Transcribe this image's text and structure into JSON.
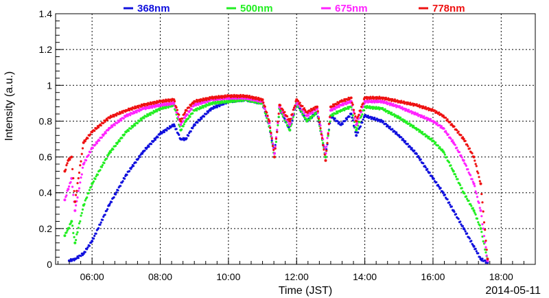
{
  "chart_data": {
    "type": "scatter",
    "xlabel": "Time (JST)",
    "ylabel": "Intensity (a.u.)",
    "date_label": "2014-05-11",
    "x_unit": "hours (JST)",
    "xlim": [
      4.93,
      19.0
    ],
    "ylim": [
      0,
      1.4
    ],
    "grid": true,
    "legend_position": "top",
    "x_ticks": [
      {
        "value": 6,
        "label": "06:00"
      },
      {
        "value": 8,
        "label": "08:00"
      },
      {
        "value": 10,
        "label": "10:00"
      },
      {
        "value": 12,
        "label": "12:00"
      },
      {
        "value": 14,
        "label": "14:00"
      },
      {
        "value": 16,
        "label": "16:00"
      },
      {
        "value": 18,
        "label": "18:00"
      }
    ],
    "y_ticks": [
      {
        "value": 0,
        "label": "0"
      },
      {
        "value": 0.2,
        "label": "0.2"
      },
      {
        "value": 0.4,
        "label": "0.4"
      },
      {
        "value": 0.6,
        "label": "0.6"
      },
      {
        "value": 0.8,
        "label": "0.8"
      },
      {
        "value": 1,
        "label": "1"
      },
      {
        "value": 1.2,
        "label": "1.2"
      },
      {
        "value": 1.4,
        "label": "1.4"
      }
    ],
    "series": [
      {
        "name": "368nm",
        "color": "#1010dd",
        "x": [
          5.33,
          5.5,
          5.75,
          6.0,
          6.5,
          7.0,
          7.5,
          8.0,
          8.4,
          8.6,
          8.75,
          9.0,
          9.5,
          10.0,
          10.5,
          11.0,
          11.2,
          11.35,
          11.5,
          11.8,
          12.0,
          12.3,
          12.6,
          12.85,
          13.0,
          13.3,
          13.6,
          13.75,
          14.0,
          14.5,
          15.0,
          15.5,
          16.0,
          16.3,
          16.6,
          16.9,
          17.2,
          17.4,
          17.6
        ],
        "y": [
          0.02,
          0.03,
          0.06,
          0.13,
          0.33,
          0.5,
          0.63,
          0.73,
          0.78,
          0.7,
          0.7,
          0.78,
          0.87,
          0.91,
          0.92,
          0.9,
          0.77,
          0.62,
          0.87,
          0.75,
          0.9,
          0.8,
          0.85,
          0.6,
          0.83,
          0.78,
          0.84,
          0.72,
          0.83,
          0.8,
          0.72,
          0.62,
          0.48,
          0.4,
          0.3,
          0.2,
          0.1,
          0.03,
          0.01
        ]
      },
      {
        "name": "500nm",
        "color": "#22ee22",
        "x": [
          5.2,
          5.3,
          5.4,
          5.5,
          5.75,
          6.0,
          6.5,
          7.0,
          7.5,
          8.0,
          8.4,
          8.6,
          8.75,
          9.0,
          9.5,
          10.0,
          10.5,
          11.0,
          11.2,
          11.35,
          11.5,
          11.8,
          12.0,
          12.3,
          12.6,
          12.85,
          13.0,
          13.3,
          13.6,
          13.75,
          14.0,
          14.5,
          15.0,
          15.5,
          16.0,
          16.3,
          16.6,
          16.9,
          17.2,
          17.4,
          17.6
        ],
        "y": [
          0.16,
          0.2,
          0.24,
          0.12,
          0.33,
          0.45,
          0.62,
          0.74,
          0.82,
          0.87,
          0.89,
          0.75,
          0.8,
          0.86,
          0.9,
          0.91,
          0.92,
          0.9,
          0.77,
          0.6,
          0.87,
          0.75,
          0.9,
          0.8,
          0.85,
          0.6,
          0.83,
          0.86,
          0.88,
          0.75,
          0.88,
          0.87,
          0.82,
          0.76,
          0.69,
          0.63,
          0.52,
          0.4,
          0.3,
          0.2,
          0.02
        ]
      },
      {
        "name": "675nm",
        "color": "#ff22ff",
        "x": [
          5.2,
          5.3,
          5.4,
          5.5,
          5.75,
          6.0,
          6.5,
          7.0,
          7.5,
          8.0,
          8.4,
          8.6,
          8.75,
          9.0,
          9.5,
          10.0,
          10.5,
          11.0,
          11.2,
          11.35,
          11.5,
          11.8,
          12.0,
          12.3,
          12.6,
          12.85,
          13.0,
          13.3,
          13.6,
          13.75,
          14.0,
          14.5,
          15.0,
          15.5,
          16.0,
          16.3,
          16.6,
          16.9,
          17.2,
          17.4,
          17.6
        ],
        "y": [
          0.36,
          0.42,
          0.48,
          0.3,
          0.56,
          0.65,
          0.76,
          0.83,
          0.87,
          0.89,
          0.9,
          0.78,
          0.83,
          0.89,
          0.92,
          0.93,
          0.93,
          0.91,
          0.79,
          0.62,
          0.88,
          0.78,
          0.91,
          0.83,
          0.87,
          0.62,
          0.86,
          0.89,
          0.91,
          0.78,
          0.91,
          0.91,
          0.88,
          0.84,
          0.8,
          0.76,
          0.68,
          0.58,
          0.45,
          0.3,
          0.02
        ]
      },
      {
        "name": "778nm",
        "color": "#ee1111",
        "x": [
          5.2,
          5.3,
          5.4,
          5.5,
          5.75,
          6.0,
          6.5,
          7.0,
          7.5,
          8.0,
          8.4,
          8.6,
          8.75,
          9.0,
          9.5,
          10.0,
          10.5,
          11.0,
          11.2,
          11.35,
          11.5,
          11.8,
          12.0,
          12.3,
          12.6,
          12.85,
          13.0,
          13.3,
          13.6,
          13.75,
          14.0,
          14.5,
          15.0,
          15.5,
          16.0,
          16.3,
          16.6,
          16.9,
          17.2,
          17.4,
          17.6
        ],
        "y": [
          0.52,
          0.58,
          0.6,
          0.35,
          0.68,
          0.74,
          0.82,
          0.86,
          0.89,
          0.91,
          0.92,
          0.8,
          0.86,
          0.91,
          0.93,
          0.94,
          0.94,
          0.92,
          0.8,
          0.6,
          0.89,
          0.8,
          0.92,
          0.85,
          0.88,
          0.58,
          0.88,
          0.91,
          0.93,
          0.8,
          0.93,
          0.93,
          0.91,
          0.89,
          0.86,
          0.83,
          0.77,
          0.7,
          0.6,
          0.45,
          0.03
        ]
      }
    ]
  }
}
